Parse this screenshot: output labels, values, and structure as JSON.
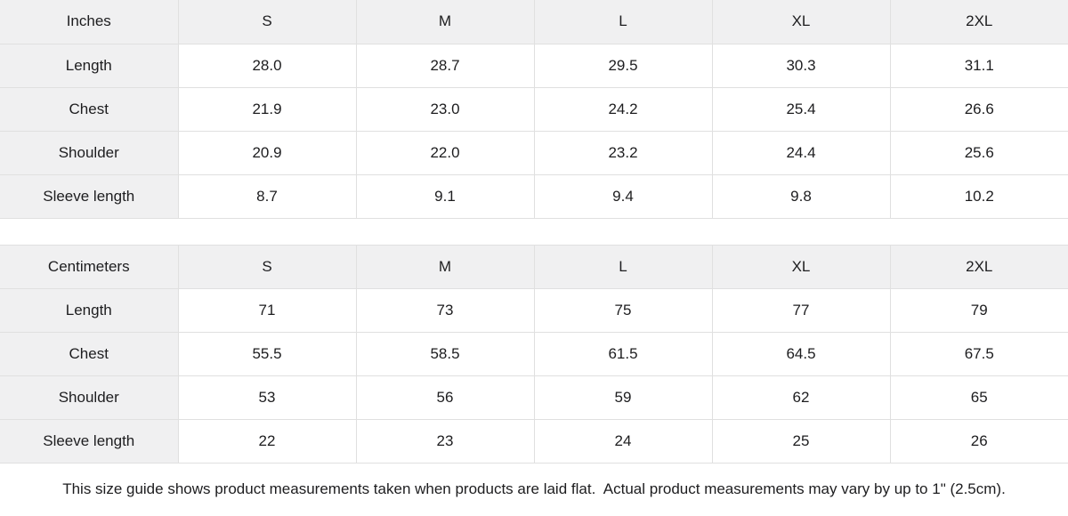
{
  "colors": {
    "header_background": "#f0f0f1",
    "cell_border": "#e0e0e0",
    "text": "#1d1d1f",
    "page_background": "#ffffff"
  },
  "chart_data": [
    {
      "type": "table",
      "unit": "Inches",
      "sizes": [
        "S",
        "M",
        "L",
        "XL",
        "2XL"
      ],
      "rows": [
        {
          "label": "Length",
          "values": [
            "28.0",
            "28.7",
            "29.5",
            "30.3",
            "31.1"
          ]
        },
        {
          "label": "Chest",
          "values": [
            "21.9",
            "23.0",
            "24.2",
            "25.4",
            "26.6"
          ]
        },
        {
          "label": "Shoulder",
          "values": [
            "20.9",
            "22.0",
            "23.2",
            "24.4",
            "25.6"
          ]
        },
        {
          "label": "Sleeve length",
          "values": [
            "8.7",
            "9.1",
            "9.4",
            "9.8",
            "10.2"
          ]
        }
      ]
    },
    {
      "type": "table",
      "unit": "Centimeters",
      "sizes": [
        "S",
        "M",
        "L",
        "XL",
        "2XL"
      ],
      "rows": [
        {
          "label": "Length",
          "values": [
            "71",
            "73",
            "75",
            "77",
            "79"
          ]
        },
        {
          "label": "Chest",
          "values": [
            "55.5",
            "58.5",
            "61.5",
            "64.5",
            "67.5"
          ]
        },
        {
          "label": "Shoulder",
          "values": [
            "53",
            "56",
            "59",
            "62",
            "65"
          ]
        },
        {
          "label": "Sleeve length",
          "values": [
            "22",
            "23",
            "24",
            "25",
            "26"
          ]
        }
      ]
    }
  ],
  "footer": {
    "note": "This size guide shows product measurements taken when products are laid flat.  Actual product measurements may vary by up to 1\" (2.5cm)."
  }
}
